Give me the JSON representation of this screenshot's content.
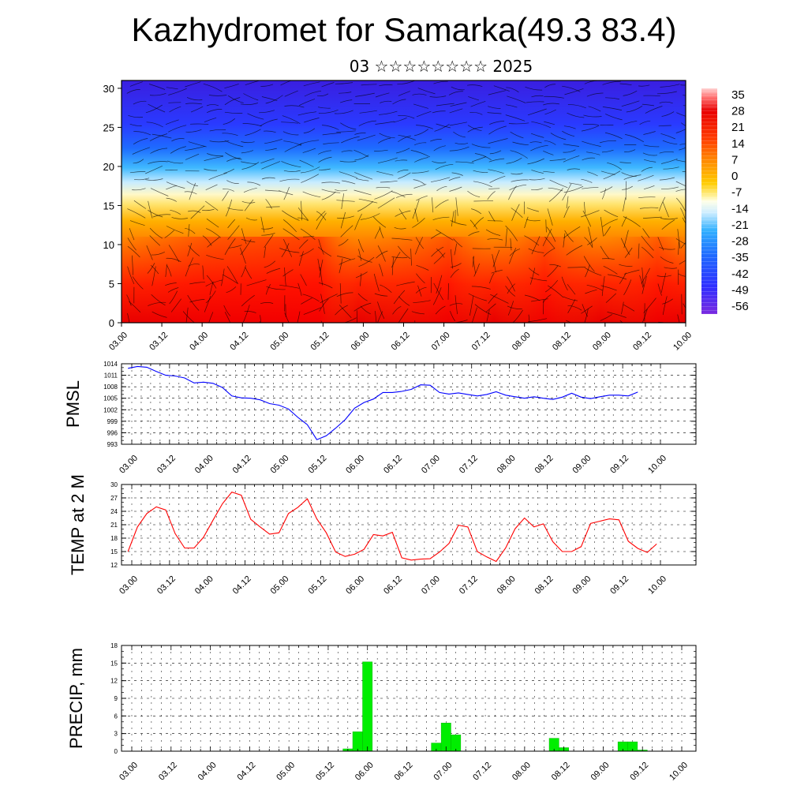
{
  "title": "Kazhydromet for Samarka(49.3 83.4)",
  "subtitle": "03 ☆☆☆☆☆☆☆☆ 2025",
  "time_labels": [
    "03.00",
    "03.12",
    "04.00",
    "04.12",
    "05.00",
    "05.12",
    "06.00",
    "06.12",
    "07.00",
    "07.12",
    "08.00",
    "08.12",
    "09.00",
    "09.12",
    "10.00"
  ],
  "colors": {
    "pmsl": "#0000ff",
    "temp": "#ff0000",
    "precip": "#00ee00"
  },
  "chart_data": [
    {
      "type": "heatmap",
      "name": "temperature-wind-cross-section",
      "y_ticks": [
        0,
        5,
        10,
        15,
        20,
        25,
        30
      ],
      "ylim": [
        0,
        31
      ],
      "colorbar_labels": [
        "35",
        "28",
        "21",
        "14",
        "7",
        "0",
        "-7",
        "-14",
        "-21",
        "-28",
        "-35",
        "-42",
        "-49",
        "-56"
      ],
      "levels_temperature": [
        {
          "level": 0,
          "value": 24
        },
        {
          "level": 5,
          "value": 18
        },
        {
          "level": 10,
          "value": 10
        },
        {
          "level": 14,
          "value": -2
        },
        {
          "level": 17,
          "value": -12
        },
        {
          "level": 20,
          "value": -30
        },
        {
          "level": 25,
          "value": -50
        },
        {
          "level": 30,
          "value": -57
        }
      ]
    },
    {
      "type": "line",
      "ylabel": "PMSL",
      "y_ticks": [
        993,
        996,
        999,
        1002,
        1005,
        1008,
        1011,
        1014
      ],
      "ylim": [
        993,
        1014
      ],
      "x_start": -0.05,
      "x_step": 0.125,
      "values": [
        1012.8,
        1013.3,
        1013.1,
        1012.0,
        1011.0,
        1010.8,
        1010.3,
        1009.0,
        1009.2,
        1008.9,
        1007.8,
        1005.6,
        1005.1,
        1005.0,
        1004.6,
        1003.6,
        1003.2,
        1002.2,
        1000.0,
        998.1,
        994.2,
        995.2,
        997.2,
        999.4,
        1002.4,
        1003.9,
        1004.8,
        1006.5,
        1006.5,
        1006.8,
        1007.3,
        1008.5,
        1008.4,
        1006.5,
        1006.1,
        1006.4,
        1006.0,
        1005.6,
        1006.0,
        1006.7,
        1005.8,
        1005.4,
        1005.0,
        1005.4,
        1005.0,
        1004.7,
        1005.3,
        1006.3,
        1005.3,
        1004.9,
        1005.4,
        1005.8,
        1005.8,
        1005.6,
        1006.6
      ]
    },
    {
      "type": "line",
      "ylabel": "TEMP at 2 M",
      "y_ticks": [
        12,
        15,
        18,
        21,
        24,
        27,
        30
      ],
      "ylim": [
        12,
        30
      ],
      "x_start": -0.05,
      "x_step": 0.125,
      "values": [
        15.0,
        20.5,
        23.5,
        25.0,
        24.3,
        19.0,
        15.8,
        15.8,
        18.2,
        22.0,
        25.7,
        28.3,
        27.6,
        22.2,
        20.5,
        18.9,
        19.2,
        23.5,
        24.9,
        26.8,
        22.3,
        19.2,
        14.9,
        13.9,
        14.4,
        15.5,
        18.8,
        18.5,
        19.3,
        13.6,
        13.1,
        13.3,
        13.4,
        14.9,
        16.8,
        20.9,
        20.5,
        15.0,
        13.8,
        12.8,
        15.8,
        20.1,
        22.5,
        20.5,
        21.2,
        17.2,
        15.0,
        15.0,
        16.1,
        21.3,
        21.8,
        22.3,
        22.1,
        17.3,
        15.7,
        14.8,
        16.7
      ]
    },
    {
      "type": "bar",
      "ylabel": "PRECIP, mm",
      "y_ticks": [
        0,
        3,
        6,
        9,
        12,
        15,
        18
      ],
      "ylim": [
        0,
        18
      ],
      "x_start": 0.0,
      "x_step": 0.125,
      "values": [
        0,
        0,
        0,
        0,
        0,
        0,
        0,
        0,
        0,
        0,
        0,
        0,
        0,
        0,
        0,
        0,
        0,
        0,
        0,
        0,
        0,
        0,
        0.4,
        3.3,
        15.2,
        0,
        0,
        0,
        0,
        0,
        0,
        1.4,
        4.8,
        2.8,
        0,
        0,
        0,
        0,
        0,
        0,
        0,
        0,
        0,
        2.2,
        0.6,
        0,
        0,
        0,
        0,
        0,
        1.6,
        1.6,
        0.2,
        0,
        0,
        0,
        0
      ]
    }
  ]
}
